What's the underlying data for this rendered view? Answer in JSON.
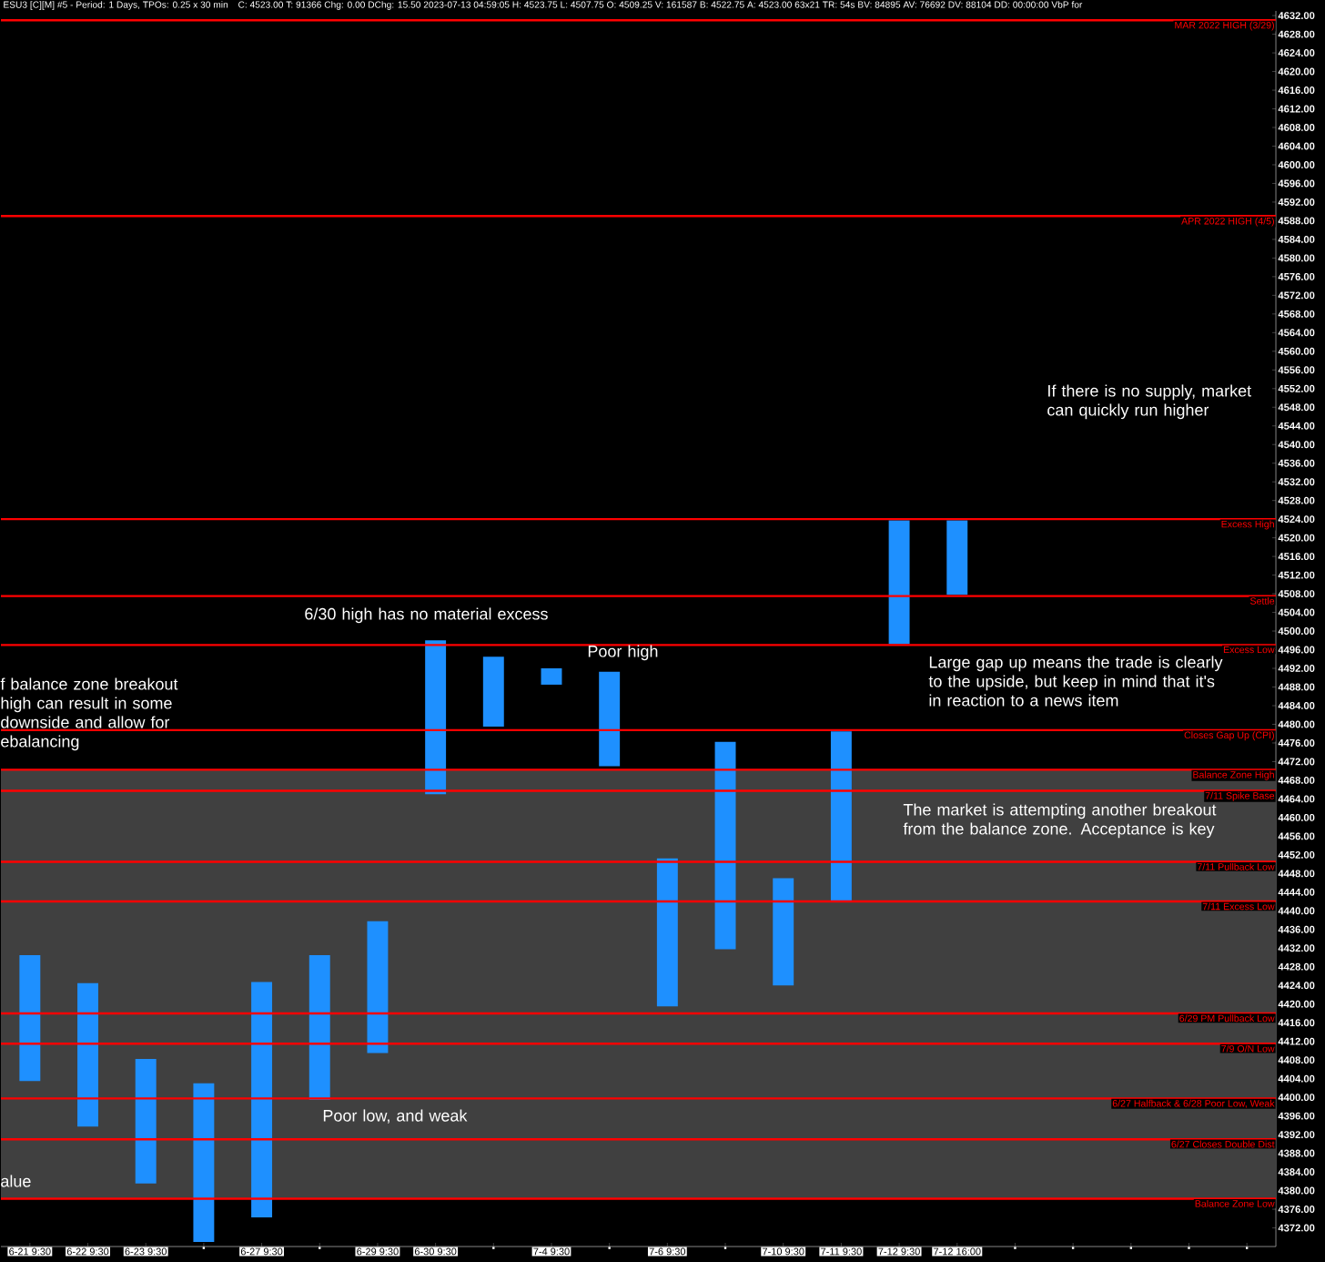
{
  "chart_data": {
    "type": "bar",
    "title": "ESU3 [C][M] #5 - Period: 1 Days, TPOs: 0.25 x 30 min",
    "subtitle": "C: 4523.00 T: 91366 Chg: 0.00 DChg: 15.50 2023-07-13 04:59:05 H: 4523.75 L: 4507.75 O: 4509.25 V: 161587 B: 4522.75 A: 4523.00 63x21 TR: 54s BV: 84895 AV: 76692 DV: 88104 DD: 00:00:00 VbP for",
    "categories": [
      "6-21  9:30",
      "6-22  9:30",
      "6-23  9:30",
      null,
      "6-27  9:30",
      null,
      "6-29  9:30",
      "6-30  9:30",
      null,
      "7-4  9:30",
      null,
      "7-6  9:30",
      null,
      "7-10  9:30",
      "7-11  9:30",
      "7-12  9:30",
      "7-12  16:00",
      null,
      null,
      null,
      null,
      null
    ],
    "base": [
      4403.5,
      4393.75,
      4381.5,
      4369,
      4374.25,
      4399.5,
      4409.5,
      4465,
      4479.5,
      4488.5,
      4471,
      4419.5,
      4431.75,
      4424,
      4442,
      4497.25,
      4507.75,
      null,
      null,
      null,
      null,
      null
    ],
    "values": [
      27,
      30.75,
      26.75,
      34,
      50.5,
      31,
      28.25,
      33,
      15,
      3.5,
      20.25,
      31.75,
      44.5,
      23,
      36.5,
      26.5,
      16,
      null,
      null,
      null,
      null,
      null
    ],
    "color": "#1e90ff",
    "ylim": [
      4368,
      4633
    ],
    "yticks": [
      {
        "value": 4372,
        "label": "4372.00"
      },
      {
        "value": 4376,
        "label": "4376.00"
      },
      {
        "value": 4380,
        "label": "4380.00"
      },
      {
        "value": 4384,
        "label": "4384.00"
      },
      {
        "value": 4388,
        "label": "4388.00"
      },
      {
        "value": 4392,
        "label": "4392.00"
      },
      {
        "value": 4396,
        "label": "4396.00"
      },
      {
        "value": 4400,
        "label": "4400.00"
      },
      {
        "value": 4404,
        "label": "4404.00"
      },
      {
        "value": 4408,
        "label": "4408.00"
      },
      {
        "value": 4412,
        "label": "4412.00"
      },
      {
        "value": 4416,
        "label": "4416.00"
      },
      {
        "value": 4420,
        "label": "4420.00"
      },
      {
        "value": 4424,
        "label": "4424.00"
      },
      {
        "value": 4428,
        "label": "4428.00"
      },
      {
        "value": 4432,
        "label": "4432.00"
      },
      {
        "value": 4436,
        "label": "4436.00"
      },
      {
        "value": 4440,
        "label": "4440.00"
      },
      {
        "value": 4444,
        "label": "4444.00"
      },
      {
        "value": 4448,
        "label": "4448.00"
      },
      {
        "value": 4452,
        "label": "4452.00"
      },
      {
        "value": 4456,
        "label": "4456.00"
      },
      {
        "value": 4460,
        "label": "4460.00"
      },
      {
        "value": 4464,
        "label": "4464.00"
      },
      {
        "value": 4468,
        "label": "4468.00"
      },
      {
        "value": 4472,
        "label": "4472.00"
      },
      {
        "value": 4476,
        "label": "4476.00"
      },
      {
        "value": 4480,
        "label": "4480.00"
      },
      {
        "value": 4484,
        "label": "4484.00"
      },
      {
        "value": 4488,
        "label": "4488.00"
      },
      {
        "value": 4492,
        "label": "4492.00"
      },
      {
        "value": 4496,
        "label": "4496.00"
      },
      {
        "value": 4500,
        "label": "4500.00"
      },
      {
        "value": 4504,
        "label": "4504.00"
      },
      {
        "value": 4508,
        "label": "4508.00"
      },
      {
        "value": 4512,
        "label": "4512.00"
      },
      {
        "value": 4516,
        "label": "4516.00"
      },
      {
        "value": 4520,
        "label": "4520.00"
      },
      {
        "value": 4524,
        "label": "4524.00"
      },
      {
        "value": 4528,
        "label": "4528.00"
      },
      {
        "value": 4532,
        "label": "4532.00"
      },
      {
        "value": 4536,
        "label": "4536.00"
      },
      {
        "value": 4540,
        "label": "4540.00"
      },
      {
        "value": 4544,
        "label": "4544.00"
      },
      {
        "value": 4548,
        "label": "4548.00"
      },
      {
        "value": 4552,
        "label": "4552.00"
      },
      {
        "value": 4556,
        "label": "4556.00"
      },
      {
        "value": 4560,
        "label": "4560.00"
      },
      {
        "value": 4564,
        "label": "4564.00"
      },
      {
        "value": 4568,
        "label": "4568.00"
      },
      {
        "value": 4572,
        "label": "4572.00"
      },
      {
        "value": 4576,
        "label": "4576.00"
      },
      {
        "value": 4580,
        "label": "4580.00"
      },
      {
        "value": 4584,
        "label": "4584.00"
      },
      {
        "value": 4588,
        "label": "4588.00"
      },
      {
        "value": 4592,
        "label": "4592.00"
      },
      {
        "value": 4596,
        "label": "4596.00"
      },
      {
        "value": 4600,
        "label": "4600.00"
      },
      {
        "value": 4604,
        "label": "4604.00"
      },
      {
        "value": 4608,
        "label": "4608.00"
      },
      {
        "value": 4612,
        "label": "4612.00"
      },
      {
        "value": 4616,
        "label": "4616.00"
      },
      {
        "value": 4620,
        "label": "4620.00"
      },
      {
        "value": 4624,
        "label": "4624.00"
      },
      {
        "value": 4628,
        "label": "4628.00"
      },
      {
        "value": 4632,
        "label": "4632.00"
      }
    ],
    "bands": [
      {
        "axis": "y",
        "from": 4378.25,
        "to": 4470.25,
        "label": null,
        "color": "#404040"
      }
    ],
    "ref_lines": [
      {
        "axis": "y",
        "value": 4631,
        "label": "MAR 2022 HIGH (3/29)",
        "color": "#ff0000"
      },
      {
        "axis": "y",
        "value": 4589,
        "label": "APR 2022 HIGH (4/5)",
        "color": "#ff0000"
      },
      {
        "axis": "y",
        "value": 4524,
        "label": "Excess High",
        "color": "#ff0000"
      },
      {
        "axis": "y",
        "value": 4507.5,
        "label": "Settle",
        "color": "#ff0000"
      },
      {
        "axis": "y",
        "value": 4497,
        "label": "Excess Low",
        "color": "#ff0000"
      },
      {
        "axis": "y",
        "value": 4478.75,
        "label": "Closes Gap Up (CPI)",
        "color": "#ff0000"
      },
      {
        "axis": "y",
        "value": 4470.25,
        "label": "Balance Zone High",
        "color": "#ff0000"
      },
      {
        "axis": "y",
        "value": 4465.75,
        "label": "7/11 Spike Base",
        "color": "#ff0000"
      },
      {
        "axis": "y",
        "value": 4450.5,
        "label": "7/11 Pullback Low",
        "color": "#ff0000"
      },
      {
        "axis": "y",
        "value": 4442,
        "label": "7/11 Excess Low",
        "color": "#ff0000"
      },
      {
        "axis": "y",
        "value": 4418,
        "label": "6/29 PM Pullback Low",
        "color": "#ff0000"
      },
      {
        "axis": "y",
        "value": 4411.5,
        "label": "7/9 O/N Low",
        "color": "#ff0000"
      },
      {
        "axis": "y",
        "value": 4399.75,
        "label": "6/27 Halfback & 6/28 Poor Low, Weak",
        "color": "#ff0000"
      },
      {
        "axis": "y",
        "value": 4391,
        "label": "6/27 Closes Double Dist",
        "color": "#ff0000"
      },
      {
        "axis": "y",
        "value": 4378.25,
        "label": "Balance Zone Low",
        "color": "#ff0000"
      }
    ],
    "annotations": [
      "If there is no supply, market can quickly run higher",
      "6/30 high has no material excess",
      "Poor high",
      "Large gap up means the trade is clearly to the upside, but keep in mind that it's in reaction to a news item",
      "The market is attempting another breakout from the balance zone. Acceptance is key",
      "f balance zone breakout high can result in some downside and allow for ebalancing",
      "Poor low, and weak",
      "alue"
    ]
  }
}
